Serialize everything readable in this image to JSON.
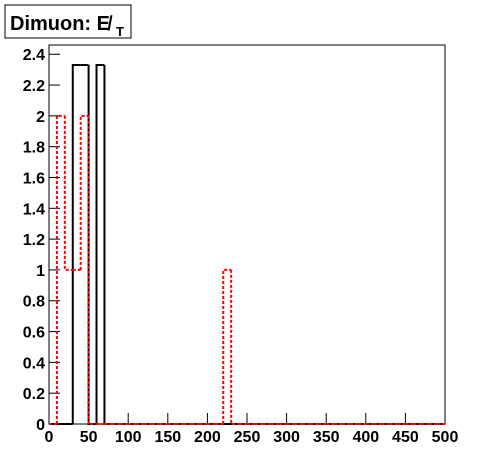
{
  "chart_data": {
    "type": "histogram",
    "title": "Dimuon: E̸",
    "title_subscript": "T",
    "bins": [
      0,
      10,
      20,
      30,
      40,
      50,
      60,
      70,
      80,
      90,
      100,
      110,
      120,
      130,
      140,
      150,
      160,
      170,
      180,
      190,
      200,
      210,
      220,
      230,
      240,
      250,
      260,
      270,
      280,
      290,
      300,
      310,
      320,
      330,
      340,
      350,
      360,
      370,
      380,
      390,
      400,
      410,
      420,
      430,
      440,
      450,
      460,
      470,
      480,
      490,
      500
    ],
    "series": [
      {
        "color": "#000000",
        "line_style": "solid",
        "values": [
          0,
          0,
          0,
          2.33,
          2.33,
          0,
          2.33,
          0,
          0,
          0,
          0,
          0,
          0,
          0,
          0,
          0,
          0,
          0,
          0,
          0,
          0,
          0,
          0,
          0,
          0,
          0,
          0,
          0,
          0,
          0,
          0,
          0,
          0,
          0,
          0,
          0,
          0,
          0,
          0,
          0,
          0,
          0,
          0,
          0,
          0,
          0,
          0,
          0,
          0,
          0
        ]
      },
      {
        "color": "#ff0000",
        "line_style": "dotted",
        "values": [
          0,
          2,
          1,
          1,
          2,
          0,
          0,
          0,
          0,
          0,
          0,
          0,
          0,
          0,
          0,
          0,
          0,
          0,
          0,
          0,
          0,
          0,
          1,
          0,
          0,
          0,
          0,
          0,
          0,
          0,
          0,
          0,
          0,
          0,
          0,
          0,
          0,
          0,
          0,
          0,
          0,
          0,
          0,
          0,
          0,
          0,
          0,
          0,
          0,
          0
        ]
      }
    ],
    "xlim": [
      0,
      500
    ],
    "xticks": [
      0,
      50,
      100,
      150,
      200,
      250,
      300,
      350,
      400,
      450,
      500
    ],
    "ylim": [
      0,
      2.46
    ],
    "yticks": [
      0,
      0.2,
      0.4,
      0.6,
      0.8,
      1,
      1.2,
      1.4,
      1.6,
      1.8,
      2,
      2.2,
      2.4
    ]
  }
}
